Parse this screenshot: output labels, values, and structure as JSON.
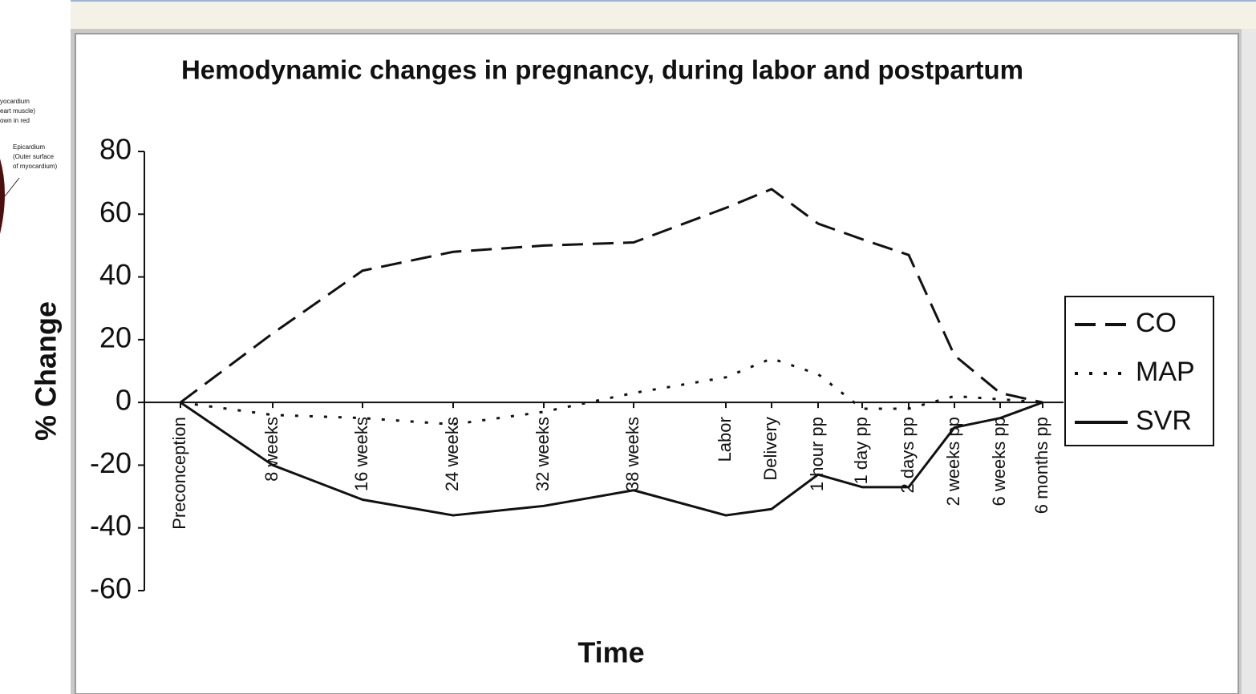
{
  "inset": {
    "labels": [
      "yocardium",
      "eart muscle)",
      "own in red",
      "Epicardium",
      "(Outer surface",
      "of myocardium)"
    ]
  },
  "chart_data": {
    "type": "line",
    "title": "Hemodynamic changes in pregnancy, during labor and postpartum",
    "x_label": "Time",
    "y_label": "% Change",
    "categories": [
      "Preconception",
      "8 weeks",
      "16 weeks",
      "24 weeks",
      "32 weeks",
      "38 weeks",
      "Labor",
      "Delivery",
      "1 hour pp",
      "1 day pp",
      "2 days pp",
      "2 weeks pp",
      "6 weeks pp",
      "6 months pp"
    ],
    "series": [
      {
        "name": "CO",
        "color": "#111111",
        "style": "dashed",
        "values": [
          0,
          22,
          42,
          48,
          50,
          51,
          62,
          68,
          57,
          52,
          47,
          15,
          3,
          0
        ]
      },
      {
        "name": "MAP",
        "color": "#111111",
        "style": "dotted",
        "values": [
          0,
          -4,
          -5,
          -7,
          -3,
          3,
          8,
          14,
          9,
          -2,
          -2,
          2,
          1,
          0
        ]
      },
      {
        "name": "SVR",
        "color": "#111111",
        "style": "solid",
        "values": [
          0,
          -20,
          -31,
          -36,
          -33,
          -28,
          -36,
          -34,
          -23,
          -27,
          -27,
          -8,
          -5,
          0
        ]
      }
    ],
    "ylim": [
      -60,
      80
    ],
    "yticks": [
      -60,
      -40,
      -20,
      0,
      20,
      40,
      60,
      80
    ],
    "legend": "right"
  }
}
